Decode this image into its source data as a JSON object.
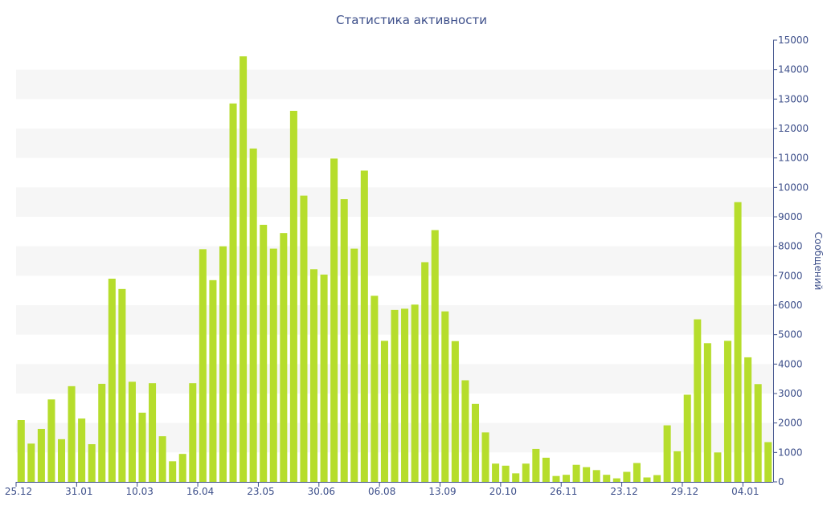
{
  "colors": {
    "bar": "#b6dd2c",
    "axis": "#3d4f8a",
    "band": "#f6f6f6",
    "text": "#3d4f8a"
  },
  "chart_data": {
    "type": "bar",
    "title": "Статистика активности",
    "ylabel": "Сообщений",
    "xlabel": "",
    "ylim": [
      0,
      15000
    ],
    "yticks": [
      0,
      1000,
      2000,
      3000,
      4000,
      5000,
      6000,
      7000,
      8000,
      9000,
      10000,
      11000,
      12000,
      13000,
      14000,
      15000
    ],
    "y_axis_position": "right",
    "grid": "alternating horizontal bands",
    "x_tick_labels": [
      {
        "label": "25.12",
        "index": 0
      },
      {
        "label": "31.01",
        "index": 6
      },
      {
        "label": "10.03",
        "index": 12
      },
      {
        "label": "16.04",
        "index": 18
      },
      {
        "label": "23.05",
        "index": 24
      },
      {
        "label": "30.06",
        "index": 30
      },
      {
        "label": "06.08",
        "index": 36
      },
      {
        "label": "13.09",
        "index": 42
      },
      {
        "label": "20.10",
        "index": 48
      },
      {
        "label": "26.11",
        "index": 54
      },
      {
        "label": "23.12",
        "index": 60
      },
      {
        "label": "29.12",
        "index": 66
      },
      {
        "label": "04.01",
        "index": 72
      }
    ],
    "values": [
      2100,
      1300,
      1800,
      2800,
      1450,
      3250,
      2150,
      1280,
      3330,
      6900,
      6550,
      3400,
      2350,
      3350,
      1550,
      700,
      950,
      3350,
      7900,
      6850,
      8000,
      12850,
      14450,
      11320,
      8730,
      7920,
      8450,
      12600,
      9720,
      7220,
      7040,
      10980,
      9600,
      7920,
      10570,
      6320,
      4790,
      5840,
      5880,
      6020,
      7460,
      8550,
      5790,
      4780,
      3450,
      2650,
      1680,
      620,
      550,
      290,
      620,
      1120,
      820,
      200,
      240,
      580,
      500,
      400,
      240,
      120,
      340,
      640,
      150,
      230,
      1920,
      1040,
      2960,
      5520,
      4710,
      1000,
      4790,
      9500,
      4230,
      3320,
      1350
    ]
  }
}
